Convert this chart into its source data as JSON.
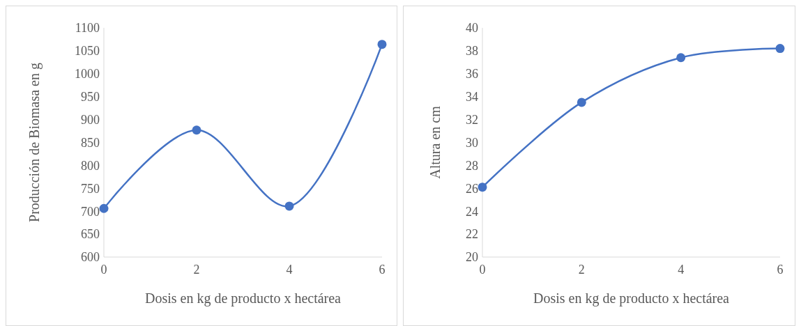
{
  "chart_data": [
    {
      "type": "line",
      "xlabel": "Dosis en kg de producto x hectárea",
      "ylabel": "Producción de Biomasa en g",
      "x": [
        0,
        2,
        4,
        6
      ],
      "series": [
        {
          "color": "#4472c4",
          "values": [
            706,
            877,
            711,
            1064
          ]
        }
      ],
      "xlim": [
        0,
        6
      ],
      "xticks": [
        0,
        2,
        4,
        6
      ],
      "ylim": [
        600,
        1100
      ],
      "yticks": [
        600,
        650,
        700,
        750,
        800,
        850,
        900,
        950,
        1000,
        1050,
        1100
      ],
      "marker": "circle",
      "grid": false
    },
    {
      "type": "line",
      "xlabel": "Dosis en kg de producto x hectárea",
      "ylabel": "Altura en cm",
      "x": [
        0,
        2,
        4,
        6
      ],
      "series": [
        {
          "color": "#4472c4",
          "values": [
            26.1,
            33.5,
            37.4,
            38.2
          ]
        }
      ],
      "xlim": [
        0,
        6
      ],
      "xticks": [
        0,
        2,
        4,
        6
      ],
      "ylim": [
        20,
        40
      ],
      "yticks": [
        20,
        22,
        24,
        26,
        28,
        30,
        32,
        34,
        36,
        38,
        40
      ],
      "marker": "circle",
      "grid": false
    }
  ]
}
